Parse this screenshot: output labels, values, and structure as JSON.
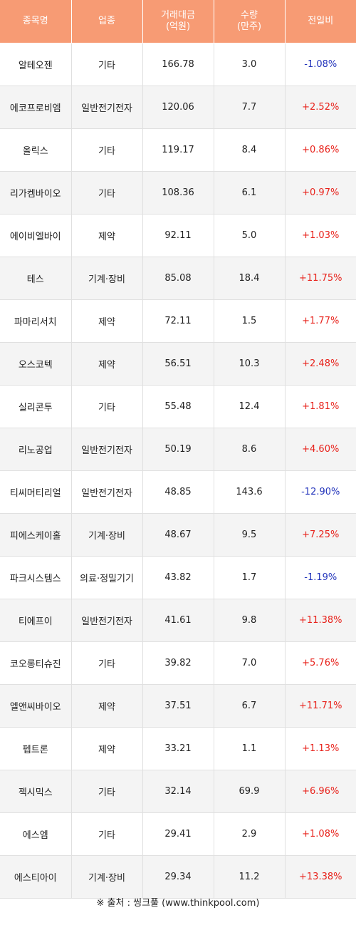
{
  "headers": {
    "name": "종목명",
    "sector": "업종",
    "trade_value": [
      "거래대금",
      "(억원)"
    ],
    "volume": [
      "수량",
      "(만주)"
    ],
    "change": "전일비"
  },
  "rows": [
    {
      "name": "알테오젠",
      "sector": "기타",
      "trade_value": "166.78",
      "volume": "3.0",
      "change": "-1.08%"
    },
    {
      "name": "에코프로비엠",
      "sector": "일반전기전자",
      "trade_value": "120.06",
      "volume": "7.7",
      "change": "+2.52%"
    },
    {
      "name": "올릭스",
      "sector": "기타",
      "trade_value": "119.17",
      "volume": "8.4",
      "change": "+0.86%"
    },
    {
      "name": "리가켐바이오",
      "sector": "기타",
      "trade_value": "108.36",
      "volume": "6.1",
      "change": "+0.97%"
    },
    {
      "name": "에이비엘바이",
      "sector": "제약",
      "trade_value": "92.11",
      "volume": "5.0",
      "change": "+1.03%"
    },
    {
      "name": "테스",
      "sector": "기계·장비",
      "trade_value": "85.08",
      "volume": "18.4",
      "change": "+11.75%"
    },
    {
      "name": "파마리서치",
      "sector": "제약",
      "trade_value": "72.11",
      "volume": "1.5",
      "change": "+1.77%"
    },
    {
      "name": "오스코텍",
      "sector": "제약",
      "trade_value": "56.51",
      "volume": "10.3",
      "change": "+2.48%"
    },
    {
      "name": "실리콘투",
      "sector": "기타",
      "trade_value": "55.48",
      "volume": "12.4",
      "change": "+1.81%"
    },
    {
      "name": "리노공업",
      "sector": "일반전기전자",
      "trade_value": "50.19",
      "volume": "8.6",
      "change": "+4.60%"
    },
    {
      "name": "티씨머티리얼",
      "sector": "일반전기전자",
      "trade_value": "48.85",
      "volume": "143.6",
      "change": "-12.90%"
    },
    {
      "name": "피에스케이홀",
      "sector": "기계·장비",
      "trade_value": "48.67",
      "volume": "9.5",
      "change": "+7.25%"
    },
    {
      "name": "파크시스템스",
      "sector": "의료·정밀기기",
      "trade_value": "43.82",
      "volume": "1.7",
      "change": "-1.19%"
    },
    {
      "name": "티에프이",
      "sector": "일반전기전자",
      "trade_value": "41.61",
      "volume": "9.8",
      "change": "+11.38%"
    },
    {
      "name": "코오롱티슈진",
      "sector": "기타",
      "trade_value": "39.82",
      "volume": "7.0",
      "change": "+5.76%"
    },
    {
      "name": "엘앤씨바이오",
      "sector": "제약",
      "trade_value": "37.51",
      "volume": "6.7",
      "change": "+11.71%"
    },
    {
      "name": "펩트론",
      "sector": "제약",
      "trade_value": "33.21",
      "volume": "1.1",
      "change": "+1.13%"
    },
    {
      "name": "젝시믹스",
      "sector": "기타",
      "trade_value": "32.14",
      "volume": "69.9",
      "change": "+6.96%"
    },
    {
      "name": "에스엠",
      "sector": "기타",
      "trade_value": "29.41",
      "volume": "2.9",
      "change": "+1.08%"
    },
    {
      "name": "에스티아이",
      "sector": "기계·장비",
      "trade_value": "29.34",
      "volume": "11.2",
      "change": "+13.38%"
    }
  ],
  "colors": {
    "header_bg": "#f79b74",
    "header_text": "#ffffff",
    "row_alt_bg": "#f4f4f4",
    "positive": "#e8221b",
    "negative": "#2233bb"
  },
  "source": "※ 출처 : 씽크풀 (www.thinkpool.com)"
}
